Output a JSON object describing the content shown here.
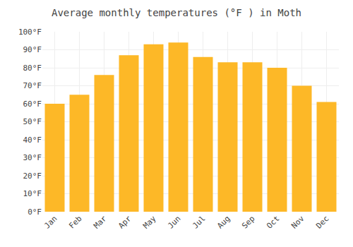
{
  "chart_data": {
    "type": "bar",
    "title": "Average monthly temperatures (°F ) in Moth",
    "categories": [
      "Jan",
      "Feb",
      "Mar",
      "Apr",
      "May",
      "Jun",
      "Jul",
      "Aug",
      "Sep",
      "Oct",
      "Nov",
      "Dec"
    ],
    "values": [
      60,
      65,
      76,
      87,
      93,
      94,
      86,
      83,
      83,
      80,
      70,
      61
    ],
    "color": "#FDB827",
    "ylim": [
      0,
      100
    ],
    "yticks": [
      {
        "value": 0,
        "label": "0°F"
      },
      {
        "value": 10,
        "label": "10°F"
      },
      {
        "value": 20,
        "label": "20°F"
      },
      {
        "value": 30,
        "label": "30°F"
      },
      {
        "value": 40,
        "label": "40°F"
      },
      {
        "value": 50,
        "label": "50°F"
      },
      {
        "value": 60,
        "label": "60°F"
      },
      {
        "value": 70,
        "label": "70°F"
      },
      {
        "value": 80,
        "label": "80°F"
      },
      {
        "value": 90,
        "label": "90°F"
      },
      {
        "value": 100,
        "label": "100°F"
      }
    ],
    "grid": true
  }
}
